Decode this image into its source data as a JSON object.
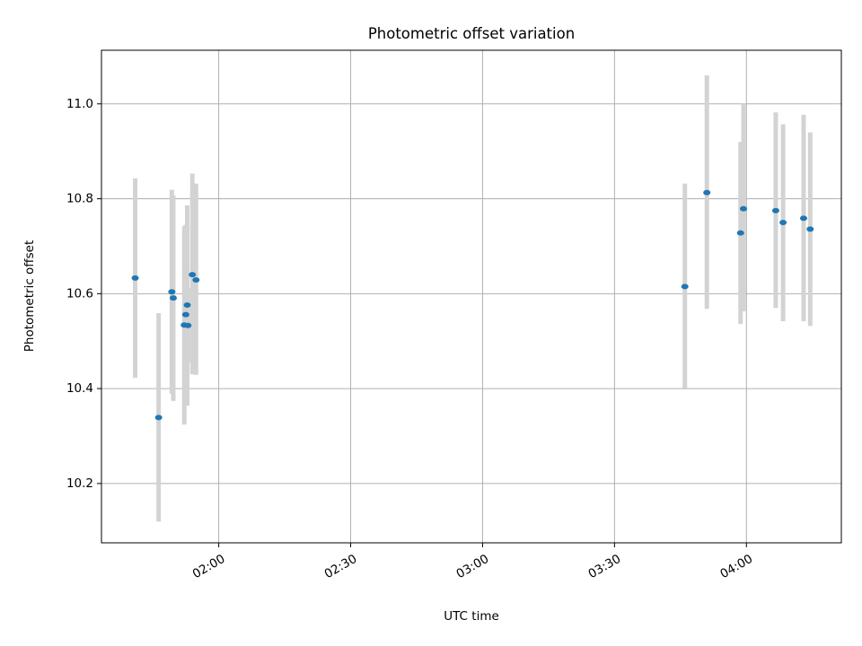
{
  "chart_data": {
    "type": "scatter",
    "title": "Photometric offset variation",
    "xlabel": "UTC time",
    "ylabel": "Photometric offset",
    "xlim": [
      "01:33:20",
      "04:21:35"
    ],
    "ylim": [
      10.075,
      11.113
    ],
    "x_ticks": [
      "02:00",
      "02:30",
      "03:00",
      "03:30",
      "04:00"
    ],
    "y_ticks": [
      "10.2",
      "10.4",
      "10.6",
      "10.8",
      "11.0"
    ],
    "grid": true,
    "legend": "none",
    "colors": {
      "point": "#1f77b4",
      "errorbar": "#d3d3d3",
      "grid": "#b0b0b0"
    },
    "x": [
      "01:41:00",
      "01:46:20",
      "01:49:20",
      "01:49:40",
      "01:52:10",
      "01:52:30",
      "01:52:50",
      "01:53:00",
      "01:54:00",
      "01:54:50",
      "03:46:00",
      "03:51:00",
      "03:58:40",
      "03:59:20",
      "04:06:40",
      "04:08:20",
      "04:13:00",
      "04:14:30"
    ],
    "y": [
      10.633,
      10.339,
      10.604,
      10.591,
      10.534,
      10.556,
      10.576,
      10.533,
      10.64,
      10.629,
      10.615,
      10.813,
      10.728,
      10.779,
      10.775,
      10.75,
      10.759,
      10.736
    ],
    "y_err_low": [
      10.423,
      10.12,
      10.389,
      10.374,
      10.324,
      10.366,
      10.364,
      10.455,
      10.43,
      10.429,
      10.401,
      10.568,
      10.536,
      10.563,
      10.57,
      10.542,
      10.542,
      10.532
    ],
    "y_err_high": [
      10.843,
      10.559,
      10.819,
      10.807,
      10.742,
      10.745,
      10.786,
      10.612,
      10.853,
      10.832,
      10.832,
      11.06,
      10.92,
      11.0,
      10.982,
      10.957,
      10.977,
      10.94
    ]
  }
}
